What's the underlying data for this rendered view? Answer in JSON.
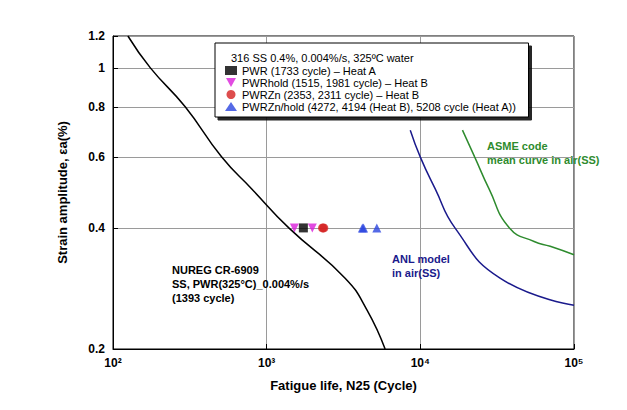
{
  "chart_data": {
    "type": "scatter",
    "title": "316 SS 0.4%, 0.004%/s, 325ºC water",
    "x_label": "Fatigue life, N25 (Cycle)",
    "y_label": "Strain amplitude, εa(%)",
    "log": true,
    "grid": true,
    "xlim": [
      100,
      100000
    ],
    "xticks": [
      {
        "value": 100,
        "label": "10²"
      },
      {
        "value": 1000,
        "label": "10³"
      },
      {
        "value": 10000,
        "label": "10⁴"
      },
      {
        "value": 100000,
        "label": "10⁵"
      }
    ],
    "ylim": [
      0.2,
      1.2
    ],
    "yticks": [
      0.2,
      0.4,
      0.6,
      0.8,
      1,
      1.2
    ],
    "series": [
      {
        "name": "PWR (1733 cycle) – Heat A",
        "type": "scatter",
        "color": "#000000",
        "marker": "square",
        "x": [
          1733
        ],
        "values": [
          0.4
        ]
      },
      {
        "name": "PWRhold (1515, 1981 cycle) – Heat B",
        "type": "scatter",
        "color": "#d91ed9",
        "marker": "triangle-down",
        "x": [
          1515,
          1981
        ],
        "values": [
          0.4,
          0.4
        ]
      },
      {
        "name": "PWRZn (2353, 2311 cycle) – Heat B",
        "type": "scatter",
        "color": "#d42020",
        "marker": "circle",
        "x": [
          2353,
          2311
        ],
        "values": [
          0.4,
          0.4
        ]
      },
      {
        "name": "PWRZn/hold (4272, 4194 (Heat B), 5208 cycle (Heat A))",
        "type": "scatter",
        "color": "#2a45e0",
        "marker": "triangle",
        "x": [
          4272,
          4194,
          5208
        ],
        "values": [
          0.4,
          0.4,
          0.4
        ]
      },
      {
        "label": "NUREG CR-6909\nSS, PWR(325°C)_0.004%/s\n(1393 cycle)",
        "type": "line",
        "color": "#000000",
        "line_style": "solid",
        "x": [
          125,
          175,
          295,
          510,
          800,
          1393,
          3240,
          4500,
          5900
        ],
        "values": [
          1.2,
          1.0,
          0.8,
          0.6,
          0.5,
          0.4,
          0.3,
          0.25,
          0.2
        ]
      },
      {
        "label": "ASME code\nmean curve in air(SS)",
        "type": "line",
        "color": "#2e8b2e",
        "line_style": "solid",
        "x": [
          18800,
          22600,
          28000,
          38000,
          55000,
          70000,
          100000
        ],
        "values": [
          0.7,
          0.6,
          0.5,
          0.4,
          0.37,
          0.36,
          0.343
        ]
      },
      {
        "label": "ANL model\nin air(SS)",
        "type": "line",
        "color": "#1a1a8c",
        "line_style": "solid",
        "x": [
          8600,
          10000,
          12500,
          16800,
          33000,
          100000
        ],
        "values": [
          0.7,
          0.6,
          0.5,
          0.4,
          0.3,
          0.257
        ]
      }
    ]
  }
}
